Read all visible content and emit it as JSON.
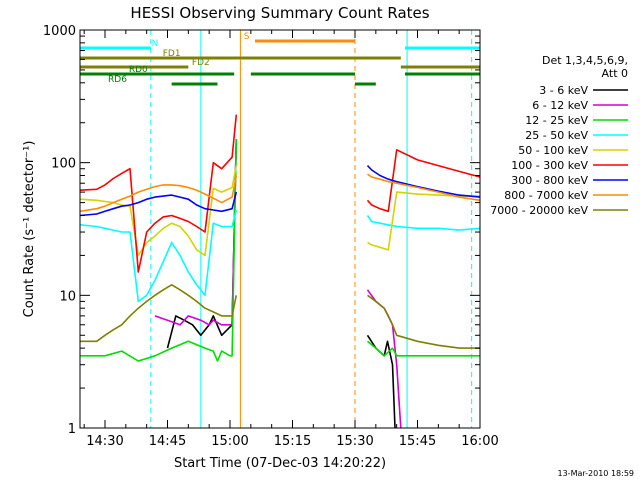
{
  "chart_data": {
    "type": "line",
    "title": "HESSI Observing Summary Count Rates",
    "xlabel": "Start Time (07-Dec-03 14:20:22)",
    "ylabel": "Count Rate (s⁻¹ detector⁻¹)",
    "x_unit": "minutes after 14:20",
    "xlim": [
      4,
      100
    ],
    "ylim": [
      1,
      1000
    ],
    "yscale": "log",
    "x_ticks": [
      {
        "label": "14:30",
        "value": 10
      },
      {
        "label": "14:45",
        "value": 25
      },
      {
        "label": "15:00",
        "value": 40
      },
      {
        "label": "15:15",
        "value": 55
      },
      {
        "label": "15:30",
        "value": 70
      },
      {
        "label": "15:45",
        "value": 85
      },
      {
        "label": "16:00",
        "value": 100
      }
    ],
    "y_ticks": [
      {
        "label": "1",
        "value": 1
      },
      {
        "label": "10",
        "value": 10
      },
      {
        "label": "100",
        "value": 100
      },
      {
        "label": "1000",
        "value": 1000
      }
    ],
    "legend_header": [
      "Det 1,3,4,5,6,9,",
      "Att 0"
    ],
    "legend_placement": "right",
    "series": [
      {
        "name": "3 - 6 keV",
        "color": "#000000",
        "x": [
          4,
          10,
          18,
          22,
          25,
          27,
          29,
          31,
          33,
          35,
          36,
          38,
          40.5,
          41.5,
          42.2,
          68,
          73,
          75,
          77,
          77.8,
          79,
          79.6,
          80,
          85,
          95,
          100
        ],
        "y": [
          null,
          null,
          null,
          null,
          4,
          7,
          6.5,
          6,
          5,
          6,
          7,
          5,
          6,
          150,
          null,
          null,
          5,
          4,
          3.5,
          4.5,
          3,
          1,
          null,
          null,
          null,
          null
        ]
      },
      {
        "name": "6 - 12 keV",
        "color": "#d400d4",
        "x": [
          4,
          10,
          18,
          20,
          22,
          25,
          28,
          30,
          33,
          35,
          36,
          38,
          40.5,
          41.5,
          42.2,
          68,
          73,
          75,
          77,
          78,
          79,
          80,
          81,
          85,
          95,
          100
        ],
        "y": [
          null,
          null,
          null,
          null,
          7,
          6.5,
          6,
          7,
          6.5,
          6,
          6.5,
          6,
          6,
          150,
          null,
          null,
          11,
          9,
          8,
          7,
          6,
          3,
          1,
          null,
          null,
          null
        ]
      },
      {
        "name": "12 - 25 keV",
        "color": "#00dd00",
        "x": [
          4,
          10,
          14,
          18,
          22,
          26,
          30,
          34,
          36,
          37,
          38,
          40,
          40.5,
          41.5,
          42.2,
          68,
          73,
          75,
          77,
          79,
          80,
          85,
          90,
          95,
          100
        ],
        "y": [
          3.5,
          3.5,
          3.8,
          3.2,
          3.5,
          4,
          4.5,
          4,
          3.8,
          3.2,
          3.8,
          3.5,
          3.5,
          150,
          null,
          null,
          4.5,
          4,
          3.5,
          4,
          3.5,
          3.5,
          3.5,
          3.5,
          3.5
        ]
      },
      {
        "name": "25 - 50 keV",
        "color": "#00ffff",
        "x": [
          4,
          8,
          10,
          12,
          14,
          16,
          18,
          20,
          22,
          24,
          26,
          28,
          30,
          32,
          34,
          36,
          38,
          40.5,
          41.5,
          42.2,
          68,
          73,
          74,
          76,
          78,
          80,
          85,
          90,
          95,
          100
        ],
        "y": [
          34,
          33,
          32,
          31,
          30,
          30,
          9,
          10,
          13,
          18,
          25,
          20,
          15,
          12,
          10,
          35,
          33,
          33,
          44,
          null,
          null,
          40,
          36,
          35,
          34,
          33,
          32,
          32,
          31,
          32
        ]
      },
      {
        "name": "50 - 100 keV",
        "color": "#d4d400",
        "x": [
          4,
          8,
          10,
          12,
          14,
          16,
          18,
          20,
          22,
          24,
          26,
          28,
          30,
          32,
          34,
          36,
          38,
          40.5,
          41.5,
          42.2,
          68,
          73,
          74,
          76,
          78,
          80,
          85,
          90,
          95,
          100
        ],
        "y": [
          53,
          52,
          51,
          50,
          48,
          47,
          20,
          25,
          28,
          32,
          35,
          33,
          28,
          22,
          20,
          64,
          60,
          65,
          95,
          null,
          null,
          25,
          24,
          23,
          22,
          60,
          58,
          57,
          56,
          56
        ]
      },
      {
        "name": "100 - 300 keV",
        "color": "#ff0000",
        "x": [
          4,
          8,
          10,
          12,
          14,
          16,
          18,
          20,
          22,
          24,
          26,
          28,
          30,
          32,
          34,
          36,
          38,
          40.5,
          41.5,
          42.2,
          68,
          73,
          74,
          76,
          78,
          80,
          85,
          90,
          95,
          100
        ],
        "y": [
          62,
          63,
          68,
          76,
          83,
          90,
          15,
          30,
          35,
          39,
          40,
          38,
          36,
          33,
          30,
          100,
          90,
          110,
          230,
          null,
          null,
          52,
          48,
          45,
          43,
          125,
          105,
          95,
          86,
          78
        ]
      },
      {
        "name": "300 - 800 keV",
        "color": "#0000ff",
        "x": [
          4,
          8,
          10,
          12,
          14,
          16,
          18,
          20,
          22,
          24,
          26,
          28,
          30,
          32,
          34,
          36,
          38,
          40.5,
          41.5,
          42.2,
          68,
          73,
          74,
          76,
          78,
          80,
          85,
          90,
          95,
          100
        ],
        "y": [
          40,
          41,
          43,
          45,
          47,
          48,
          50,
          53,
          55,
          56,
          57,
          55,
          53,
          48,
          45,
          44,
          43,
          45,
          60,
          null,
          null,
          95,
          88,
          80,
          75,
          72,
          66,
          61,
          57,
          55
        ]
      },
      {
        "name": "800 - 7000 keV",
        "color": "#ff8c00",
        "x": [
          4,
          8,
          10,
          12,
          14,
          16,
          18,
          20,
          22,
          24,
          26,
          28,
          30,
          32,
          34,
          36,
          38,
          40.5,
          41.5,
          42.2,
          68,
          73,
          74,
          76,
          78,
          80,
          85,
          90,
          95,
          100
        ],
        "y": [
          43,
          45,
          47,
          50,
          53,
          56,
          60,
          63,
          66,
          68,
          68,
          67,
          65,
          62,
          58,
          54,
          50,
          55,
          80,
          null,
          null,
          82,
          78,
          75,
          72,
          70,
          65,
          60,
          55,
          52
        ]
      },
      {
        "name": "7000 - 20000 keV",
        "color": "#808000",
        "x": [
          4,
          8,
          10,
          12,
          14,
          16,
          18,
          20,
          22,
          24,
          26,
          28,
          30,
          32,
          34,
          36,
          38,
          40.5,
          41.5,
          42.2,
          68,
          73,
          75,
          77,
          79,
          80,
          85,
          90,
          95,
          100
        ],
        "y": [
          4.5,
          4.5,
          5,
          5.5,
          6,
          7,
          8,
          9,
          10,
          11,
          12,
          11,
          10,
          9,
          8,
          7.5,
          7,
          7,
          10,
          null,
          null,
          10,
          9,
          8,
          6,
          5,
          4.5,
          4.2,
          4,
          4
        ]
      }
    ],
    "observing_bars": [
      {
        "label": "N",
        "color": "#00ffff",
        "segments": [
          [
            4,
            21
          ],
          [
            82,
            103
          ]
        ],
        "label_at": 22
      },
      {
        "label": "S",
        "color": "#ff8c00",
        "segments": [
          [
            46,
            70
          ]
        ],
        "label_at": 44
      },
      {
        "label": "FD1",
        "color": "#808000",
        "segments": [
          [
            4,
            81
          ]
        ],
        "label_at": 26
      },
      {
        "label": "FD2",
        "color": "#808000",
        "segments": [
          [
            4,
            30
          ],
          [
            81,
            103
          ]
        ],
        "label_at": 33
      },
      {
        "label": "RD0",
        "color": "#008000",
        "segments": [
          [
            4,
            41
          ],
          [
            45,
            70
          ],
          [
            82,
            103
          ]
        ],
        "label_at": 18
      },
      {
        "label": "RD6",
        "color": "#008000",
        "segments": [
          [
            26,
            37
          ],
          [
            70,
            75
          ]
        ],
        "label_at": 13
      }
    ],
    "vlines": [
      {
        "x": 4,
        "color": "#00ffff",
        "style": "solid"
      },
      {
        "x": 21,
        "color": "#00ffff",
        "style": "dashed"
      },
      {
        "x": 33,
        "color": "#00ffff",
        "style": "solid"
      },
      {
        "x": 42.5,
        "color": "#ff8c00",
        "style": "solid"
      },
      {
        "x": 70,
        "color": "#ff8c00",
        "style": "dashed"
      },
      {
        "x": 82.5,
        "color": "#00ffff",
        "style": "solid"
      },
      {
        "x": 98,
        "color": "#00ffff",
        "style": "dashed"
      }
    ]
  },
  "footer": {
    "timestamp": "13-Mar-2010 18:59"
  }
}
